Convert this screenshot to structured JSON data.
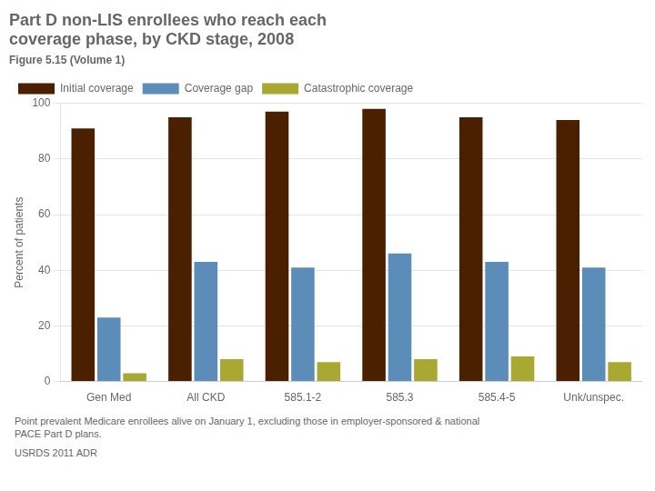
{
  "chart_data": {
    "type": "bar",
    "title": "Part D non-LIS enrollees who reach each\ncoverage phase, by CKD stage, 2008",
    "subtitle": "Figure 5.15 (Volume 1)",
    "categories": [
      "Gen Med",
      "All CKD",
      "585.1-2",
      "585.3",
      "585.4-5",
      "Unk/unspec."
    ],
    "series": [
      {
        "name": "Initial coverage",
        "color": "#4a2000",
        "values": [
          91,
          95,
          97,
          98,
          95,
          94
        ]
      },
      {
        "name": "Coverage gap",
        "color": "#5b8db8",
        "values": [
          23,
          43,
          41,
          46,
          43,
          41
        ]
      },
      {
        "name": "Catastrophic coverage",
        "color": "#a8a832",
        "values": [
          3,
          8,
          7,
          8,
          9,
          7
        ]
      }
    ],
    "ylabel": "Percent of patients",
    "ylim": [
      0,
      100
    ],
    "yticks": [
      0,
      20,
      40,
      60,
      80,
      100
    ],
    "grid": true,
    "legend": "upper left",
    "annotations": [
      "Point prevalent Medicare enrollees alive on January 1, excluding those in employer-sponsored & national\nPACE Part D plans.",
      "USRDS 2011 ADR"
    ]
  }
}
